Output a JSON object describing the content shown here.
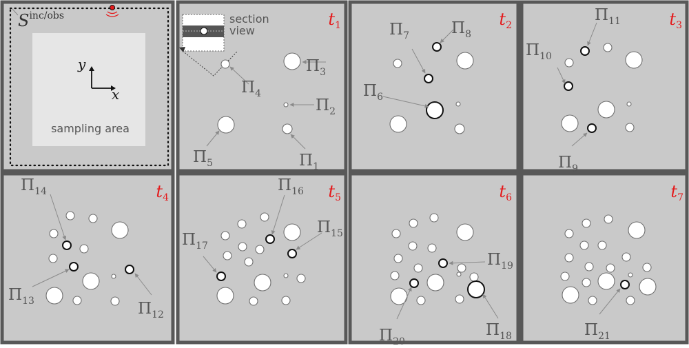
{
  "source_label": {
    "base": "S",
    "sup": "inc/obs"
  },
  "sampling_area_label": "sampling area",
  "axes": {
    "x": "x",
    "y": "y"
  },
  "section_view_label": [
    "section",
    "view"
  ],
  "colors": {
    "time_label": "#e41a1c",
    "frame": "#585858",
    "panel": "#c9c9c9",
    "sampling_area": "#e6e6e6",
    "source_dot": "#e41a1c"
  },
  "panels": [
    {
      "time": {
        "base": "t",
        "sub": "1"
      },
      "labels": [
        {
          "base": "Π",
          "sub": "3"
        },
        {
          "base": "Π",
          "sub": "4"
        },
        {
          "base": "Π",
          "sub": "2"
        },
        {
          "base": "Π",
          "sub": "5"
        },
        {
          "base": "Π",
          "sub": "1"
        }
      ]
    },
    {
      "time": {
        "base": "t",
        "sub": "2"
      },
      "labels": [
        {
          "base": "Π",
          "sub": "7"
        },
        {
          "base": "Π",
          "sub": "8"
        },
        {
          "base": "Π",
          "sub": "6"
        }
      ]
    },
    {
      "time": {
        "base": "t",
        "sub": "3"
      },
      "labels": [
        {
          "base": "Π",
          "sub": "11"
        },
        {
          "base": "Π",
          "sub": "10"
        },
        {
          "base": "Π",
          "sub": "9"
        }
      ]
    },
    {
      "time": {
        "base": "t",
        "sub": "4"
      },
      "labels": [
        {
          "base": "Π",
          "sub": "14"
        },
        {
          "base": "Π",
          "sub": "13"
        },
        {
          "base": "Π",
          "sub": "12"
        }
      ]
    },
    {
      "time": {
        "base": "t",
        "sub": "5"
      },
      "labels": [
        {
          "base": "Π",
          "sub": "16"
        },
        {
          "base": "Π",
          "sub": "15"
        },
        {
          "base": "Π",
          "sub": "17"
        }
      ]
    },
    {
      "time": {
        "base": "t",
        "sub": "6"
      },
      "labels": [
        {
          "base": "Π",
          "sub": "19"
        },
        {
          "base": "Π",
          "sub": "20"
        },
        {
          "base": "Π",
          "sub": "18"
        }
      ]
    },
    {
      "time": {
        "base": "t",
        "sub": "7"
      },
      "labels": [
        {
          "base": "Π",
          "sub": "21"
        }
      ]
    }
  ]
}
